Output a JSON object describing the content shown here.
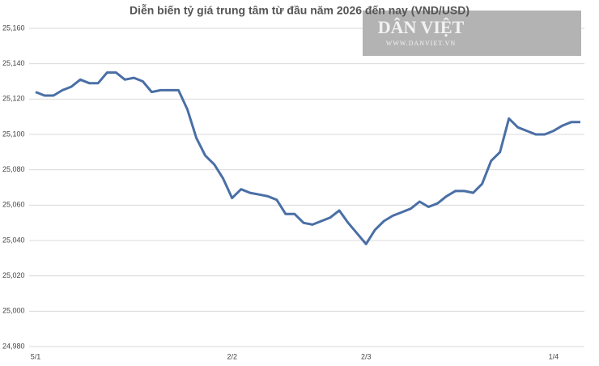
{
  "chart_data": {
    "type": "line",
    "title": "Diễn biến tỷ giá trung tâm từ đầu năm 2026 đến nay (VND/USD)",
    "watermark": [
      "DÂN VIỆT",
      "WWW.DANVIET.VN"
    ],
    "categories": [
      "5/1",
      null,
      null,
      null,
      null,
      null,
      null,
      null,
      null,
      null,
      null,
      null,
      null,
      null,
      null,
      null,
      null,
      null,
      null,
      null,
      null,
      null,
      "2/2",
      null,
      null,
      null,
      null,
      null,
      null,
      null,
      null,
      null,
      null,
      null,
      null,
      null,
      null,
      "2/3",
      null,
      null,
      null,
      null,
      null,
      null,
      null,
      null,
      null,
      null,
      null,
      null,
      null,
      null,
      null,
      null,
      null,
      null,
      null,
      null,
      "1/4",
      null,
      null,
      null
    ],
    "series": [
      {
        "name": "VND/USD",
        "color": "#4a6fa5",
        "values": [
          25124,
          25122,
          25122,
          25125,
          25127,
          25131,
          25129,
          25129,
          25135,
          25135,
          25131,
          25132,
          25130,
          25124,
          25125,
          25125,
          25125,
          25114,
          25098,
          25088,
          25083,
          25075,
          25064,
          25069,
          25067,
          25066,
          25065,
          25063,
          25055,
          25055,
          25050,
          25049,
          25051,
          25053,
          25057,
          25050,
          25044,
          25038,
          25046,
          25051,
          25054,
          25056,
          25058,
          25062,
          25059,
          25061,
          25065,
          25068,
          25068,
          25067,
          25072,
          25085,
          25090,
          25109,
          25104,
          25102,
          25100,
          25100,
          25102,
          25105,
          25107,
          25107
        ]
      }
    ],
    "ylim": [
      24980,
      25160
    ],
    "yticks": [
      {
        "value": 24980,
        "label": "24,980"
      },
      {
        "value": 25000,
        "label": "25,000"
      },
      {
        "value": 25020,
        "label": "25,020"
      },
      {
        "value": 25040,
        "label": "25,040"
      },
      {
        "value": 25060,
        "label": "25,060"
      },
      {
        "value": 25080,
        "label": "25,080"
      },
      {
        "value": 25100,
        "label": "25,100"
      },
      {
        "value": 25120,
        "label": "25,120"
      },
      {
        "value": 25140,
        "label": "25,140"
      },
      {
        "value": 25160,
        "label": "25,160"
      }
    ],
    "grid": true
  }
}
